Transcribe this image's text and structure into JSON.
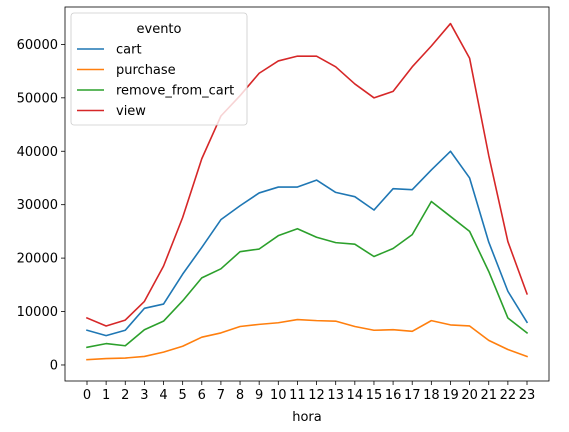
{
  "chart_data": {
    "type": "line",
    "title": "",
    "xlabel": "hora",
    "ylabel": "",
    "x": [
      0,
      1,
      2,
      3,
      4,
      5,
      6,
      7,
      8,
      9,
      10,
      11,
      12,
      13,
      14,
      15,
      16,
      17,
      18,
      19,
      20,
      21,
      22,
      23
    ],
    "xlim": [
      -1.15,
      24.15
    ],
    "ylim": [
      -3000,
      67000
    ],
    "yticks": [
      0,
      10000,
      20000,
      30000,
      40000,
      50000,
      60000
    ],
    "grid": false,
    "legend": {
      "title": "evento",
      "placement": "top-left"
    },
    "series": [
      {
        "name": "cart",
        "color": "#1f77b4",
        "values": [
          6500,
          5500,
          6500,
          10600,
          11400,
          17000,
          22000,
          27200,
          29800,
          32200,
          33300,
          33300,
          34600,
          32300,
          31500,
          29000,
          33000,
          32800,
          36500,
          40000,
          35000,
          23000,
          13800,
          8000
        ]
      },
      {
        "name": "purchase",
        "color": "#ff7f0e",
        "values": [
          1000,
          1200,
          1300,
          1600,
          2400,
          3500,
          5200,
          6000,
          7200,
          7600,
          7900,
          8500,
          8300,
          8200,
          7200,
          6500,
          6600,
          6300,
          8300,
          7500,
          7300,
          4600,
          2900,
          1600
        ]
      },
      {
        "name": "remove_from_cart",
        "color": "#2ca02c",
        "values": [
          3300,
          4000,
          3600,
          6600,
          8200,
          12000,
          16300,
          18000,
          21200,
          21700,
          24200,
          25500,
          23900,
          22900,
          22600,
          20300,
          21800,
          24400,
          30600,
          27800,
          25000,
          17500,
          8800,
          6000
        ]
      },
      {
        "name": "view",
        "color": "#d62728",
        "values": [
          8800,
          7300,
          8400,
          11900,
          18500,
          27600,
          38600,
          46600,
          50400,
          54600,
          56900,
          57800,
          57800,
          55800,
          52600,
          50000,
          51200,
          55800,
          59700,
          63900,
          57400,
          39200,
          23100,
          13300
        ]
      }
    ]
  }
}
